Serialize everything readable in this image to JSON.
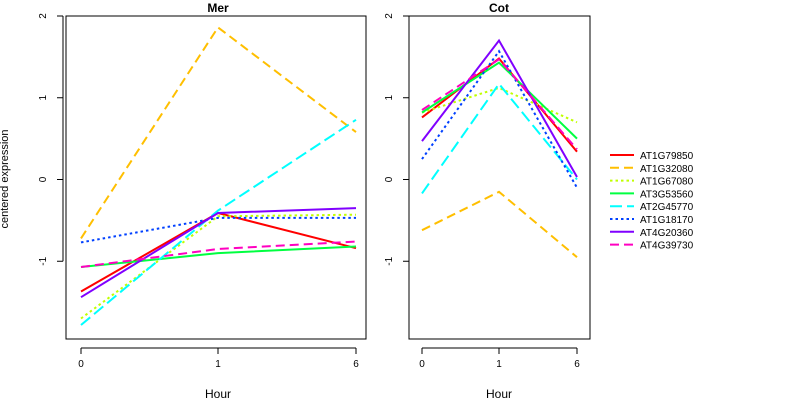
{
  "chart_data": {
    "type": "line",
    "ylabel": "centered expression",
    "xlabel": "Hour",
    "x": [
      "0",
      "1",
      "6"
    ],
    "ylim": [
      -2,
      2
    ],
    "yticks": [
      "2",
      "1",
      "0",
      "-1"
    ],
    "grid": false,
    "legend_position": "right",
    "series": [
      {
        "name": "AT1G79850",
        "color": "#FF0000",
        "dash": "solid"
      },
      {
        "name": "AT1G32080",
        "color": "#FFBF00",
        "dash": "dash"
      },
      {
        "name": "AT1G67080",
        "color": "#C0FF00",
        "dash": "dot"
      },
      {
        "name": "AT3G53560",
        "color": "#00FF40",
        "dash": "solid"
      },
      {
        "name": "AT2G45770",
        "color": "#00FFFF",
        "dash": "longdash"
      },
      {
        "name": "AT1G18170",
        "color": "#0040FF",
        "dash": "dot"
      },
      {
        "name": "AT4G20360",
        "color": "#8000FF",
        "dash": "solid"
      },
      {
        "name": "AT4G39730",
        "color": "#FF00C0",
        "dash": "dash"
      }
    ],
    "panels": [
      {
        "title": "Mer",
        "values": [
          [
            -1.37,
            -0.41,
            -0.84
          ],
          [
            -0.72,
            1.86,
            0.58
          ],
          [
            -1.7,
            -0.45,
            -0.43
          ],
          [
            -1.07,
            -0.9,
            -0.82
          ],
          [
            -1.78,
            -0.38,
            0.73
          ],
          [
            -0.77,
            -0.47,
            -0.47
          ],
          [
            -1.44,
            -0.41,
            -0.35
          ],
          [
            -1.07,
            -0.85,
            -0.76
          ]
        ]
      },
      {
        "title": "Cot",
        "values": [
          [
            0.76,
            1.48,
            0.34
          ],
          [
            -0.62,
            -0.15,
            -0.95
          ],
          [
            0.82,
            1.12,
            0.7
          ],
          [
            0.82,
            1.43,
            0.5
          ],
          [
            -0.17,
            1.17,
            0.0
          ],
          [
            0.25,
            1.57,
            -0.1
          ],
          [
            0.47,
            1.7,
            0.03
          ],
          [
            0.85,
            1.47,
            0.37
          ]
        ]
      }
    ]
  }
}
